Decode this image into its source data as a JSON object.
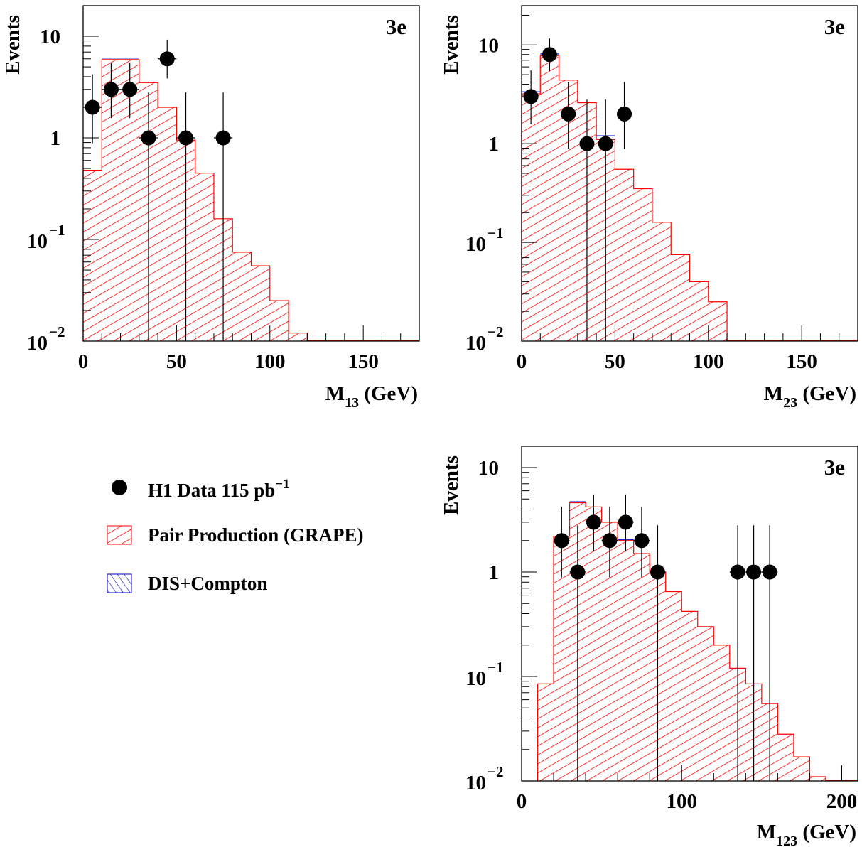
{
  "legend": {
    "data_label": "H1 Data 115 pb",
    "data_label_sup": "−1",
    "pair_label": "Pair Production (GRAPE)",
    "dis_label": "DIS+Compton"
  },
  "colors": {
    "pair_hatch": "#ff0000",
    "dis_hatch": "#0000cc",
    "data_marker": "#000000"
  },
  "chart_data": [
    {
      "id": "m13",
      "type": "histogram",
      "scale": "log",
      "channel_label": "3e",
      "ylabel": "Events",
      "xlabel_main": "M",
      "xlabel_sub": "13",
      "xlabel_unit": " (GeV)",
      "xlim": [
        0,
        180
      ],
      "ylim": [
        0.01,
        20
      ],
      "x_ticks": [
        0,
        50,
        100,
        150
      ],
      "bin_width": 10,
      "pair_production": [
        {
          "x0": 0,
          "x1": 10,
          "v": 0.48
        },
        {
          "x0": 10,
          "x1": 20,
          "v": 5.9
        },
        {
          "x0": 20,
          "x1": 30,
          "v": 5.9
        },
        {
          "x0": 30,
          "x1": 40,
          "v": 3.5
        },
        {
          "x0": 40,
          "x1": 50,
          "v": 2.0
        },
        {
          "x0": 50,
          "x1": 60,
          "v": 0.95
        },
        {
          "x0": 60,
          "x1": 70,
          "v": 0.45
        },
        {
          "x0": 70,
          "x1": 80,
          "v": 0.16
        },
        {
          "x0": 80,
          "x1": 90,
          "v": 0.075
        },
        {
          "x0": 90,
          "x1": 100,
          "v": 0.055
        },
        {
          "x0": 100,
          "x1": 110,
          "v": 0.025
        },
        {
          "x0": 110,
          "x1": 120,
          "v": 0.012
        }
      ],
      "dis_compton": [
        {
          "x0": 10,
          "x1": 20,
          "v": 6.1
        },
        {
          "x0": 20,
          "x1": 30,
          "v": 6.1
        }
      ],
      "data_points": [
        {
          "x": 5,
          "y": 2
        },
        {
          "x": 15,
          "y": 3
        },
        {
          "x": 25,
          "y": 3
        },
        {
          "x": 35,
          "y": 1
        },
        {
          "x": 45,
          "y": 6
        },
        {
          "x": 55,
          "y": 1
        },
        {
          "x": 75,
          "y": 1
        }
      ]
    },
    {
      "id": "m23",
      "type": "histogram",
      "scale": "log",
      "channel_label": "3e",
      "ylabel": "Events",
      "xlabel_main": "M",
      "xlabel_sub": "23",
      "xlabel_unit": " (GeV)",
      "xlim": [
        0,
        180
      ],
      "ylim": [
        0.01,
        25
      ],
      "x_ticks": [
        0,
        50,
        100,
        150
      ],
      "bin_width": 5,
      "pair_production": [
        {
          "x0": 0,
          "x1": 10,
          "v": 3.2
        },
        {
          "x0": 10,
          "x1": 20,
          "v": 7.8
        },
        {
          "x0": 20,
          "x1": 30,
          "v": 4.4
        },
        {
          "x0": 30,
          "x1": 40,
          "v": 2.6
        },
        {
          "x0": 40,
          "x1": 50,
          "v": 1.1
        },
        {
          "x0": 50,
          "x1": 60,
          "v": 0.55
        },
        {
          "x0": 60,
          "x1": 70,
          "v": 0.35
        },
        {
          "x0": 70,
          "x1": 80,
          "v": 0.16
        },
        {
          "x0": 80,
          "x1": 90,
          "v": 0.075
        },
        {
          "x0": 90,
          "x1": 100,
          "v": 0.04
        },
        {
          "x0": 100,
          "x1": 110,
          "v": 0.025
        }
      ],
      "dis_compton": [
        {
          "x0": 0,
          "x1": 10,
          "v": 3.35
        },
        {
          "x0": 10,
          "x1": 20,
          "v": 8.1
        },
        {
          "x0": 40,
          "x1": 50,
          "v": 1.2
        }
      ],
      "data_points": [
        {
          "x": 5,
          "y": 3
        },
        {
          "x": 15,
          "y": 8
        },
        {
          "x": 25,
          "y": 2
        },
        {
          "x": 35,
          "y": 1
        },
        {
          "x": 45,
          "y": 1
        },
        {
          "x": 55,
          "y": 2
        }
      ]
    },
    {
      "id": "m123",
      "type": "histogram",
      "scale": "log",
      "channel_label": "3e",
      "ylabel": "Events",
      "xlabel_main": "M",
      "xlabel_sub": "123",
      "xlabel_unit": " (GeV)",
      "xlim": [
        0,
        210
      ],
      "ylim": [
        0.01,
        16
      ],
      "x_ticks": [
        0,
        100,
        200
      ],
      "bin_width": 10,
      "pair_production": [
        {
          "x0": 10,
          "x1": 20,
          "v": 0.085
        },
        {
          "x0": 20,
          "x1": 30,
          "v": 2.2
        },
        {
          "x0": 30,
          "x1": 40,
          "v": 4.6
        },
        {
          "x0": 40,
          "x1": 50,
          "v": 4.2
        },
        {
          "x0": 50,
          "x1": 60,
          "v": 3.0
        },
        {
          "x0": 60,
          "x1": 70,
          "v": 2.0
        },
        {
          "x0": 70,
          "x1": 80,
          "v": 1.5
        },
        {
          "x0": 80,
          "x1": 90,
          "v": 1.0
        },
        {
          "x0": 90,
          "x1": 100,
          "v": 0.65
        },
        {
          "x0": 100,
          "x1": 110,
          "v": 0.42
        },
        {
          "x0": 110,
          "x1": 120,
          "v": 0.3
        },
        {
          "x0": 120,
          "x1": 130,
          "v": 0.2
        },
        {
          "x0": 130,
          "x1": 140,
          "v": 0.12
        },
        {
          "x0": 140,
          "x1": 150,
          "v": 0.085
        },
        {
          "x0": 150,
          "x1": 160,
          "v": 0.055
        },
        {
          "x0": 160,
          "x1": 170,
          "v": 0.028
        },
        {
          "x0": 170,
          "x1": 180,
          "v": 0.017
        },
        {
          "x0": 180,
          "x1": 190,
          "v": 0.011
        }
      ],
      "dis_compton": [
        {
          "x0": 30,
          "x1": 40,
          "v": 4.7
        },
        {
          "x0": 60,
          "x1": 70,
          "v": 2.05
        }
      ],
      "data_points": [
        {
          "x": 25,
          "y": 2
        },
        {
          "x": 35,
          "y": 1
        },
        {
          "x": 45,
          "y": 3
        },
        {
          "x": 55,
          "y": 2
        },
        {
          "x": 65,
          "y": 3
        },
        {
          "x": 75,
          "y": 2
        },
        {
          "x": 85,
          "y": 1
        },
        {
          "x": 135,
          "y": 1
        },
        {
          "x": 145,
          "y": 1
        },
        {
          "x": 155,
          "y": 1
        }
      ]
    }
  ]
}
